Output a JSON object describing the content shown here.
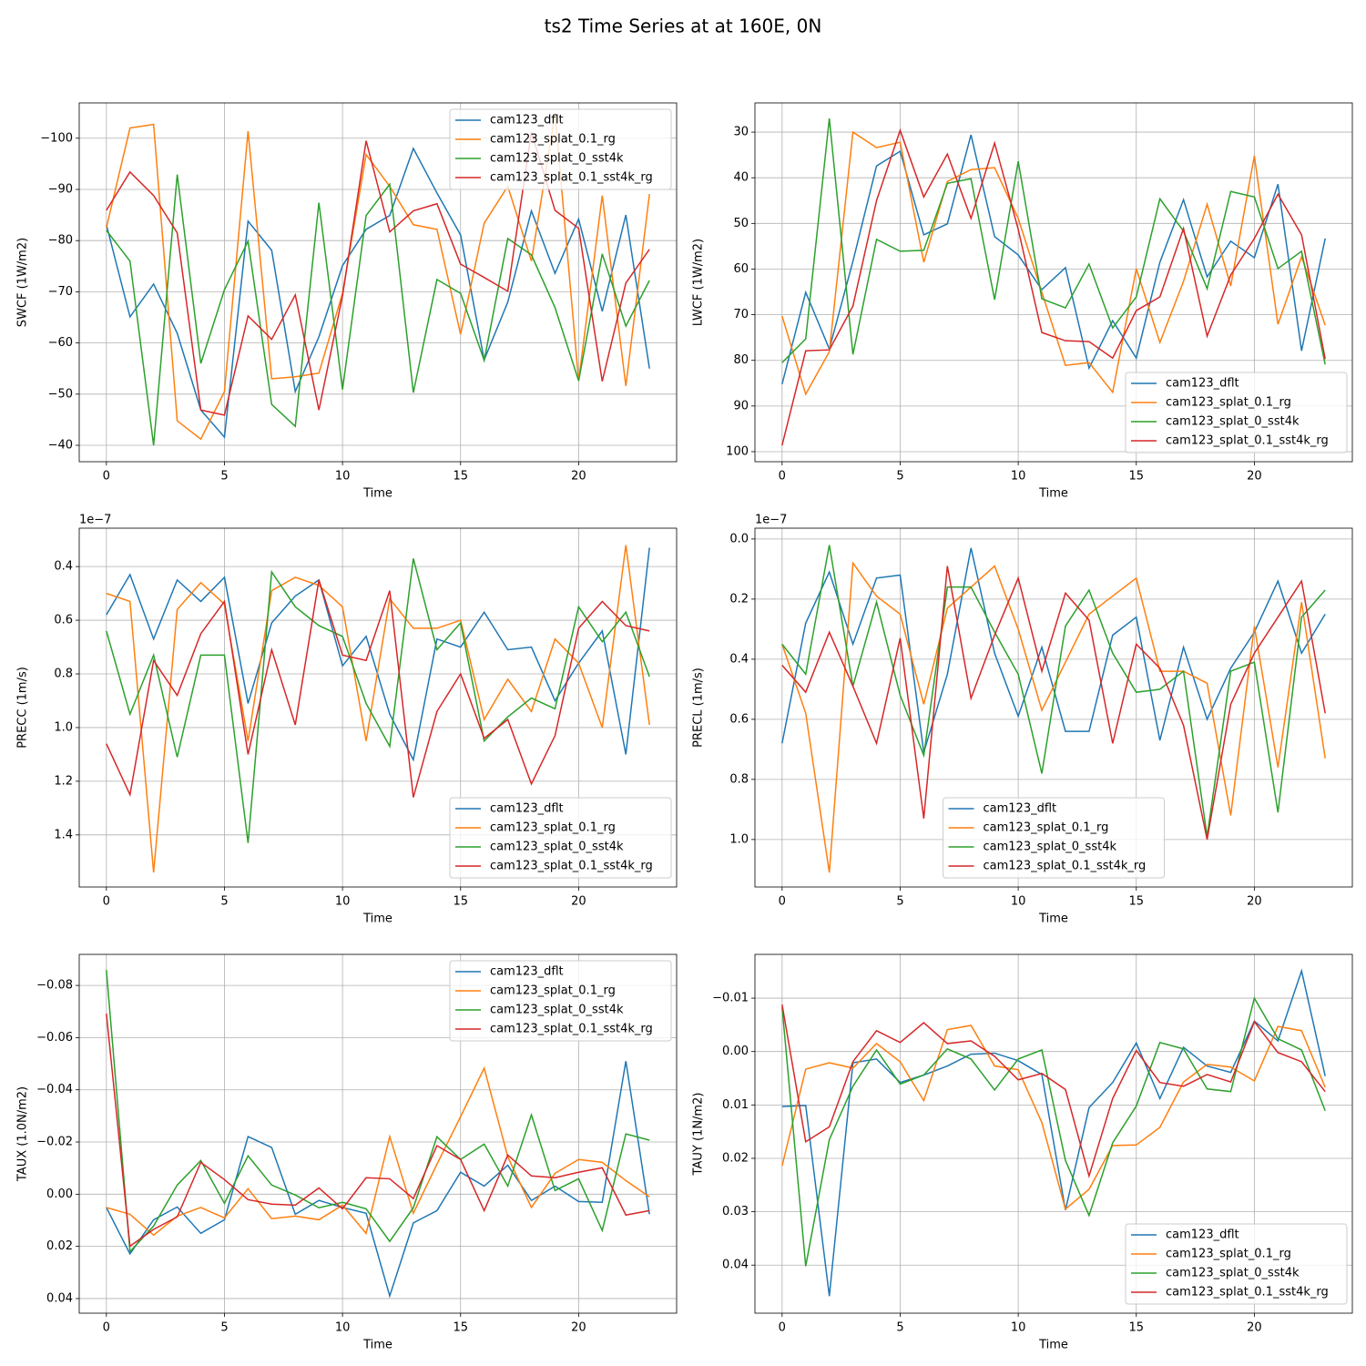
{
  "title": "ts2 Time Series at at 160E, 0N",
  "chart_data": [
    {
      "type": "line",
      "xlabel": "Time",
      "ylabel": "SWCF (1W/m2)",
      "x": [
        0,
        1,
        2,
        3,
        4,
        5,
        6,
        7,
        8,
        9,
        10,
        11,
        12,
        13,
        14,
        15,
        16,
        17,
        18,
        19,
        20,
        21,
        22,
        23
      ],
      "xlim": [
        -1.15,
        24.15
      ],
      "xticks": [
        0,
        5,
        10,
        15,
        20
      ],
      "ylim": [
        -36.8,
        -106.9
      ],
      "yticks": [
        {
          "value": -100,
          "label": "−100"
        },
        {
          "value": -90,
          "label": "−90"
        },
        {
          "value": -80,
          "label": "−80"
        },
        {
          "value": -70,
          "label": "−70"
        },
        {
          "value": -60,
          "label": "−60"
        },
        {
          "value": -50,
          "label": "−50"
        },
        {
          "value": -40,
          "label": "−40"
        }
      ],
      "grid": true,
      "legend": "upper right",
      "series": [
        {
          "name": "cam123_dflt",
          "color": "#1f77b4",
          "values": [
            -83.1,
            -65.1,
            -71.5,
            -61.9,
            -46.9,
            -41.6,
            -83.8,
            -78.1,
            -50.5,
            -61.2,
            -75.1,
            -82.2,
            -84.9,
            -98.0,
            -89.3,
            -81.1,
            -56.7,
            -68.0,
            -85.8,
            -73.6,
            -84.2,
            -66.2,
            -85.0,
            -55.0
          ]
        },
        {
          "name": "cam123_splat_0.1_rg",
          "color": "#ff7f0e",
          "values": [
            -82.5,
            -102.0,
            -102.7,
            -44.8,
            -41.2,
            -50.5,
            -101.4,
            -53.0,
            -53.4,
            -54.1,
            -69.7,
            -96.8,
            -90.6,
            -83.1,
            -82.2,
            -61.7,
            -83.4,
            -90.6,
            -76.0,
            -104.8,
            -52.6,
            -88.8,
            -51.6,
            -89.1
          ]
        },
        {
          "name": "cam123_splat_0_sst4k",
          "color": "#2ca02c",
          "values": [
            -82.0,
            -76.0,
            -40.0,
            -92.9,
            -56.0,
            -70.4,
            -79.9,
            -48.0,
            -43.7,
            -87.4,
            -50.9,
            -84.9,
            -91.0,
            -50.3,
            -72.4,
            -69.7,
            -56.6,
            -80.4,
            -77.2,
            -66.9,
            -52.6,
            -77.4,
            -63.3,
            -72.2
          ]
        },
        {
          "name": "cam123_splat_0.1_sst4k_rg",
          "color": "#d62728",
          "values": [
            -85.9,
            -93.4,
            -88.8,
            -81.5,
            -46.9,
            -45.9,
            -65.3,
            -60.7,
            -69.4,
            -46.9,
            -69.2,
            -99.5,
            -81.7,
            -85.8,
            -87.2,
            -75.4,
            -72.8,
            -70.1,
            -101.2,
            -85.9,
            -82.4,
            -52.5,
            -71.7,
            -78.3
          ]
        }
      ]
    },
    {
      "type": "line",
      "xlabel": "Time",
      "ylabel": "LWCF (1W/m2)",
      "x": [
        0,
        1,
        2,
        3,
        4,
        5,
        6,
        7,
        8,
        9,
        10,
        11,
        12,
        13,
        14,
        15,
        16,
        17,
        18,
        19,
        20,
        21,
        22,
        23
      ],
      "xlim": [
        -1.15,
        24.15
      ],
      "xticks": [
        0,
        5,
        10,
        15,
        20
      ],
      "ylim": [
        102.2,
        23.6
      ],
      "yticks": [
        30,
        40,
        50,
        60,
        70,
        80,
        90,
        100
      ],
      "grid": true,
      "legend": "lower right",
      "series": [
        {
          "name": "cam123_dflt",
          "color": "#1f77b4",
          "values": [
            85.2,
            65.1,
            77.5,
            58.3,
            37.4,
            34.2,
            52.5,
            50.1,
            30.6,
            52.9,
            56.9,
            64.5,
            59.7,
            81.7,
            71.3,
            79.5,
            58.5,
            44.8,
            61.7,
            53.9,
            57.5,
            41.4,
            77.9,
            53.3
          ]
        },
        {
          "name": "cam123_splat_0.1_rg",
          "color": "#ff7f0e",
          "values": [
            70.3,
            87.4,
            78.1,
            30.0,
            33.4,
            32.2,
            58.5,
            40.8,
            38.2,
            37.8,
            48.9,
            65.1,
            81.1,
            80.5,
            87.0,
            59.9,
            76.1,
            62.7,
            45.8,
            63.7,
            35.2,
            72.1,
            57.3,
            72.3
          ]
        },
        {
          "name": "cam123_splat_0_sst4k",
          "color": "#2ca02c",
          "values": [
            80.5,
            75.3,
            27.0,
            78.7,
            53.5,
            56.1,
            55.9,
            41.2,
            40.2,
            66.7,
            36.4,
            66.5,
            68.5,
            58.9,
            72.9,
            66.1,
            44.6,
            51.7,
            64.3,
            43.0,
            44.2,
            59.9,
            56.1,
            80.9
          ]
        },
        {
          "name": "cam123_splat_0.1_sst4k_rg",
          "color": "#d62728",
          "values": [
            98.6,
            77.9,
            77.7,
            68.1,
            45.0,
            29.6,
            44.2,
            34.8,
            48.9,
            32.4,
            51.3,
            73.9,
            75.7,
            75.9,
            79.5,
            69.1,
            66.1,
            51.1,
            74.7,
            61.3,
            53.3,
            43.6,
            52.5,
            79.7
          ]
        }
      ]
    },
    {
      "type": "line",
      "xlabel": "Time",
      "ylabel": "PRECC (1m/s)",
      "offset_text": "1e−7",
      "x": [
        0,
        1,
        2,
        3,
        4,
        5,
        6,
        7,
        8,
        9,
        10,
        11,
        12,
        13,
        14,
        15,
        16,
        17,
        18,
        19,
        20,
        21,
        22,
        23
      ],
      "xlim": [
        -1.15,
        24.15
      ],
      "xticks": [
        0,
        5,
        10,
        15,
        20
      ],
      "ylim": [
        1.594,
        0.257
      ],
      "yticks": [
        0.4,
        0.6,
        0.8,
        {
          "value": 1,
          "label": "1.0"
        },
        1.2,
        1.4
      ],
      "grid": true,
      "legend": "lower right",
      "series": [
        {
          "name": "cam123_dflt",
          "color": "#1f77b4",
          "values": [
            0.58,
            0.43,
            0.67,
            0.45,
            0.53,
            0.44,
            0.91,
            0.61,
            0.51,
            0.45,
            0.77,
            0.66,
            0.95,
            1.12,
            0.67,
            0.7,
            0.57,
            0.71,
            0.7,
            0.9,
            0.76,
            0.64,
            1.1,
            0.33
          ]
        },
        {
          "name": "cam123_splat_0.1_rg",
          "color": "#ff7f0e",
          "values": [
            0.5,
            0.53,
            1.54,
            0.56,
            0.46,
            0.54,
            1.05,
            0.49,
            0.44,
            0.47,
            0.55,
            1.05,
            0.52,
            0.63,
            0.63,
            0.6,
            0.97,
            0.82,
            0.94,
            0.67,
            0.76,
            1.0,
            0.32,
            0.99
          ]
        },
        {
          "name": "cam123_splat_0_sst4k",
          "color": "#2ca02c",
          "values": [
            0.64,
            0.95,
            0.73,
            1.11,
            0.73,
            0.73,
            1.43,
            0.42,
            0.55,
            0.62,
            0.66,
            0.91,
            1.07,
            0.37,
            0.71,
            0.61,
            1.05,
            0.96,
            0.89,
            0.93,
            0.55,
            0.68,
            0.57,
            0.81
          ]
        },
        {
          "name": "cam123_splat_0.1_sst4k_rg",
          "color": "#d62728",
          "values": [
            1.06,
            1.25,
            0.75,
            0.88,
            0.65,
            0.53,
            1.1,
            0.71,
            0.99,
            0.45,
            0.73,
            0.75,
            0.49,
            1.26,
            0.94,
            0.8,
            1.04,
            0.97,
            1.21,
            1.03,
            0.63,
            0.53,
            0.62,
            0.64
          ]
        }
      ]
    },
    {
      "type": "line",
      "xlabel": "Time",
      "ylabel": "PRECL (1m/s)",
      "offset_text": "1e−7",
      "x": [
        0,
        1,
        2,
        3,
        4,
        5,
        6,
        7,
        8,
        9,
        10,
        11,
        12,
        13,
        14,
        15,
        16,
        17,
        18,
        19,
        20,
        21,
        22,
        23
      ],
      "xlim": [
        -1.15,
        24.15
      ],
      "xticks": [
        0,
        5,
        10,
        15,
        20
      ],
      "ylim": [
        1.158,
        -0.036
      ],
      "yticks": [
        {
          "value": 0,
          "label": "0.0"
        },
        0.2,
        0.4,
        0.6,
        0.8,
        {
          "value": 1,
          "label": "1.0"
        }
      ],
      "grid": true,
      "legend": "lower center",
      "series": [
        {
          "name": "cam123_dflt",
          "color": "#1f77b4",
          "values": [
            0.68,
            0.28,
            0.11,
            0.35,
            0.13,
            0.12,
            0.71,
            0.45,
            0.03,
            0.38,
            0.59,
            0.36,
            0.64,
            0.64,
            0.32,
            0.26,
            0.67,
            0.36,
            0.6,
            0.43,
            0.31,
            0.14,
            0.38,
            0.25
          ]
        },
        {
          "name": "cam123_splat_0.1_rg",
          "color": "#ff7f0e",
          "values": [
            0.35,
            0.58,
            1.11,
            0.08,
            0.19,
            0.25,
            0.55,
            0.23,
            0.16,
            0.09,
            0.3,
            0.57,
            0.41,
            0.25,
            0.19,
            0.13,
            0.44,
            0.44,
            0.48,
            0.92,
            0.29,
            0.76,
            0.21,
            0.73
          ]
        },
        {
          "name": "cam123_splat_0_sst4k",
          "color": "#2ca02c",
          "values": [
            0.35,
            0.45,
            0.02,
            0.49,
            0.21,
            0.52,
            0.72,
            0.16,
            0.16,
            0.31,
            0.45,
            0.78,
            0.29,
            0.17,
            0.38,
            0.51,
            0.5,
            0.44,
            0.99,
            0.44,
            0.41,
            0.91,
            0.26,
            0.17
          ]
        },
        {
          "name": "cam123_splat_0.1_sst4k_rg",
          "color": "#d62728",
          "values": [
            0.42,
            0.51,
            0.31,
            0.49,
            0.68,
            0.33,
            0.93,
            0.09,
            0.53,
            0.32,
            0.13,
            0.44,
            0.18,
            0.27,
            0.68,
            0.35,
            0.43,
            0.62,
            1.0,
            0.55,
            0.38,
            0.26,
            0.14,
            0.58
          ]
        }
      ]
    },
    {
      "type": "line",
      "xlabel": "Time",
      "ylabel": "TAUX (1.0N/m2)",
      "x": [
        0,
        1,
        2,
        3,
        4,
        5,
        6,
        7,
        8,
        9,
        10,
        11,
        12,
        13,
        14,
        15,
        16,
        17,
        18,
        19,
        20,
        21,
        22,
        23
      ],
      "xlim": [
        -1.15,
        24.15
      ],
      "xticks": [
        0,
        5,
        10,
        15,
        20
      ],
      "ylim": [
        0.0456,
        -0.0919
      ],
      "yticks": [
        {
          "value": -0.08,
          "label": "−0.08"
        },
        {
          "value": -0.06,
          "label": "−0.06"
        },
        {
          "value": -0.04,
          "label": "−0.04"
        },
        {
          "value": -0.02,
          "label": "−0.02"
        },
        {
          "value": 0,
          "label": "0.00"
        },
        0.02,
        0.04
      ],
      "grid": true,
      "legend": "upper right",
      "series": [
        {
          "name": "cam123_dflt",
          "color": "#1f77b4",
          "values": [
            0.0051,
            0.0229,
            0.0098,
            0.0049,
            0.015,
            0.0098,
            -0.0221,
            -0.0179,
            0.0077,
            0.0024,
            0.0051,
            0.0073,
            0.039,
            0.011,
            0.0063,
            -0.0084,
            -0.0031,
            -0.0111,
            0.0024,
            -0.0031,
            0.0028,
            0.0031,
            -0.051,
            0.0077
          ]
        },
        {
          "name": "cam123_splat_0.1_rg",
          "color": "#ff7f0e",
          "values": [
            0.0051,
            0.0077,
            0.0157,
            0.0084,
            0.0051,
            0.0091,
            -0.0021,
            0.0094,
            0.0084,
            0.0098,
            0.0042,
            0.015,
            -0.0221,
            0.0073,
            -0.0115,
            -0.0297,
            -0.0483,
            -0.0143,
            0.0051,
            -0.008,
            -0.0133,
            -0.0122,
            -0.0052,
            0.001
          ]
        },
        {
          "name": "cam123_splat_0_sst4k",
          "color": "#2ca02c",
          "values": [
            -0.0859,
            0.022,
            0.0122,
            -0.0035,
            -0.0129,
            0.0035,
            -0.0147,
            -0.0035,
            0.0003,
            0.0052,
            0.0031,
            0.0056,
            0.0181,
            0.0052,
            -0.022,
            -0.0133,
            -0.0192,
            -0.0031,
            -0.0304,
            -0.0014,
            -0.0059,
            0.0139,
            -0.0231,
            -0.0207
          ]
        },
        {
          "name": "cam123_splat_0.1_sst4k_rg",
          "color": "#d62728",
          "values": [
            -0.0692,
            0.0199,
            0.0135,
            0.0087,
            -0.0122,
            -0.0056,
            0.0021,
            0.0038,
            0.0042,
            -0.0024,
            0.0056,
            -0.0063,
            -0.0059,
            0.0017,
            -0.0186,
            -0.0133,
            0.0063,
            -0.015,
            -0.007,
            -0.0063,
            -0.0084,
            -0.0101,
            0.008,
            0.0063
          ]
        }
      ]
    },
    {
      "type": "line",
      "xlabel": "Time",
      "ylabel": "TAUY (1N/m2)",
      "x": [
        0,
        1,
        2,
        3,
        4,
        5,
        6,
        7,
        8,
        9,
        10,
        11,
        12,
        13,
        14,
        15,
        16,
        17,
        18,
        19,
        20,
        21,
        22,
        23
      ],
      "xlim": [
        -1.15,
        24.15
      ],
      "xticks": [
        0,
        5,
        10,
        15,
        20
      ],
      "ylim": [
        0.049,
        -0.0182
      ],
      "yticks": [
        {
          "value": -0.01,
          "label": "−0.01"
        },
        {
          "value": 0,
          "label": "0.00"
        },
        0.01,
        0.02,
        0.03,
        0.04
      ],
      "grid": true,
      "legend": "lower right",
      "series": [
        {
          "name": "cam123_dflt",
          "color": "#1f77b4",
          "values": [
            0.0103,
            0.0101,
            0.0458,
            0.0021,
            0.0014,
            0.0058,
            0.0044,
            0.0027,
            0.0005,
            0.0003,
            0.0017,
            0.0043,
            0.0297,
            0.0105,
            0.0058,
            -0.0016,
            0.0088,
            -0.0008,
            0.0027,
            0.0039,
            -0.0057,
            -0.002,
            -0.0151,
            0.0046
          ]
        },
        {
          "name": "cam123_splat_0.1_rg",
          "color": "#ff7f0e",
          "values": [
            0.0214,
            0.0033,
            0.0021,
            0.0031,
            -0.0015,
            0.0019,
            0.0092,
            -0.0041,
            -0.0049,
            0.0027,
            0.0034,
            0.0133,
            0.0295,
            0.0258,
            0.0176,
            0.0175,
            0.0142,
            0.0057,
            0.0024,
            0.0029,
            0.0055,
            -0.0047,
            -0.0039,
            0.0067
          ]
        },
        {
          "name": "cam123_splat_0_sst4k",
          "color": "#2ca02c",
          "values": [
            -0.0083,
            0.0402,
            0.0165,
            0.0065,
            -0.0003,
            0.0061,
            0.0044,
            -0.0005,
            0.0014,
            0.0072,
            0.0014,
            -0.0003,
            0.0204,
            0.0307,
            0.0171,
            0.0102,
            -0.0017,
            -0.0005,
            0.007,
            0.0075,
            -0.01,
            -0.0024,
            -0.0003,
            0.0111
          ]
        },
        {
          "name": "cam123_splat_0.1_sst4k_rg",
          "color": "#d62728",
          "values": [
            -0.0088,
            0.0169,
            0.0141,
            0.0019,
            -0.0039,
            -0.0017,
            -0.0054,
            -0.0015,
            -0.002,
            0.0009,
            0.0053,
            0.0041,
            0.0071,
            0.0233,
            0.0088,
            -0.0002,
            0.0058,
            0.0065,
            0.0043,
            0.0057,
            -0.0056,
            0.0002,
            0.0019,
            0.0075
          ]
        }
      ]
    }
  ]
}
